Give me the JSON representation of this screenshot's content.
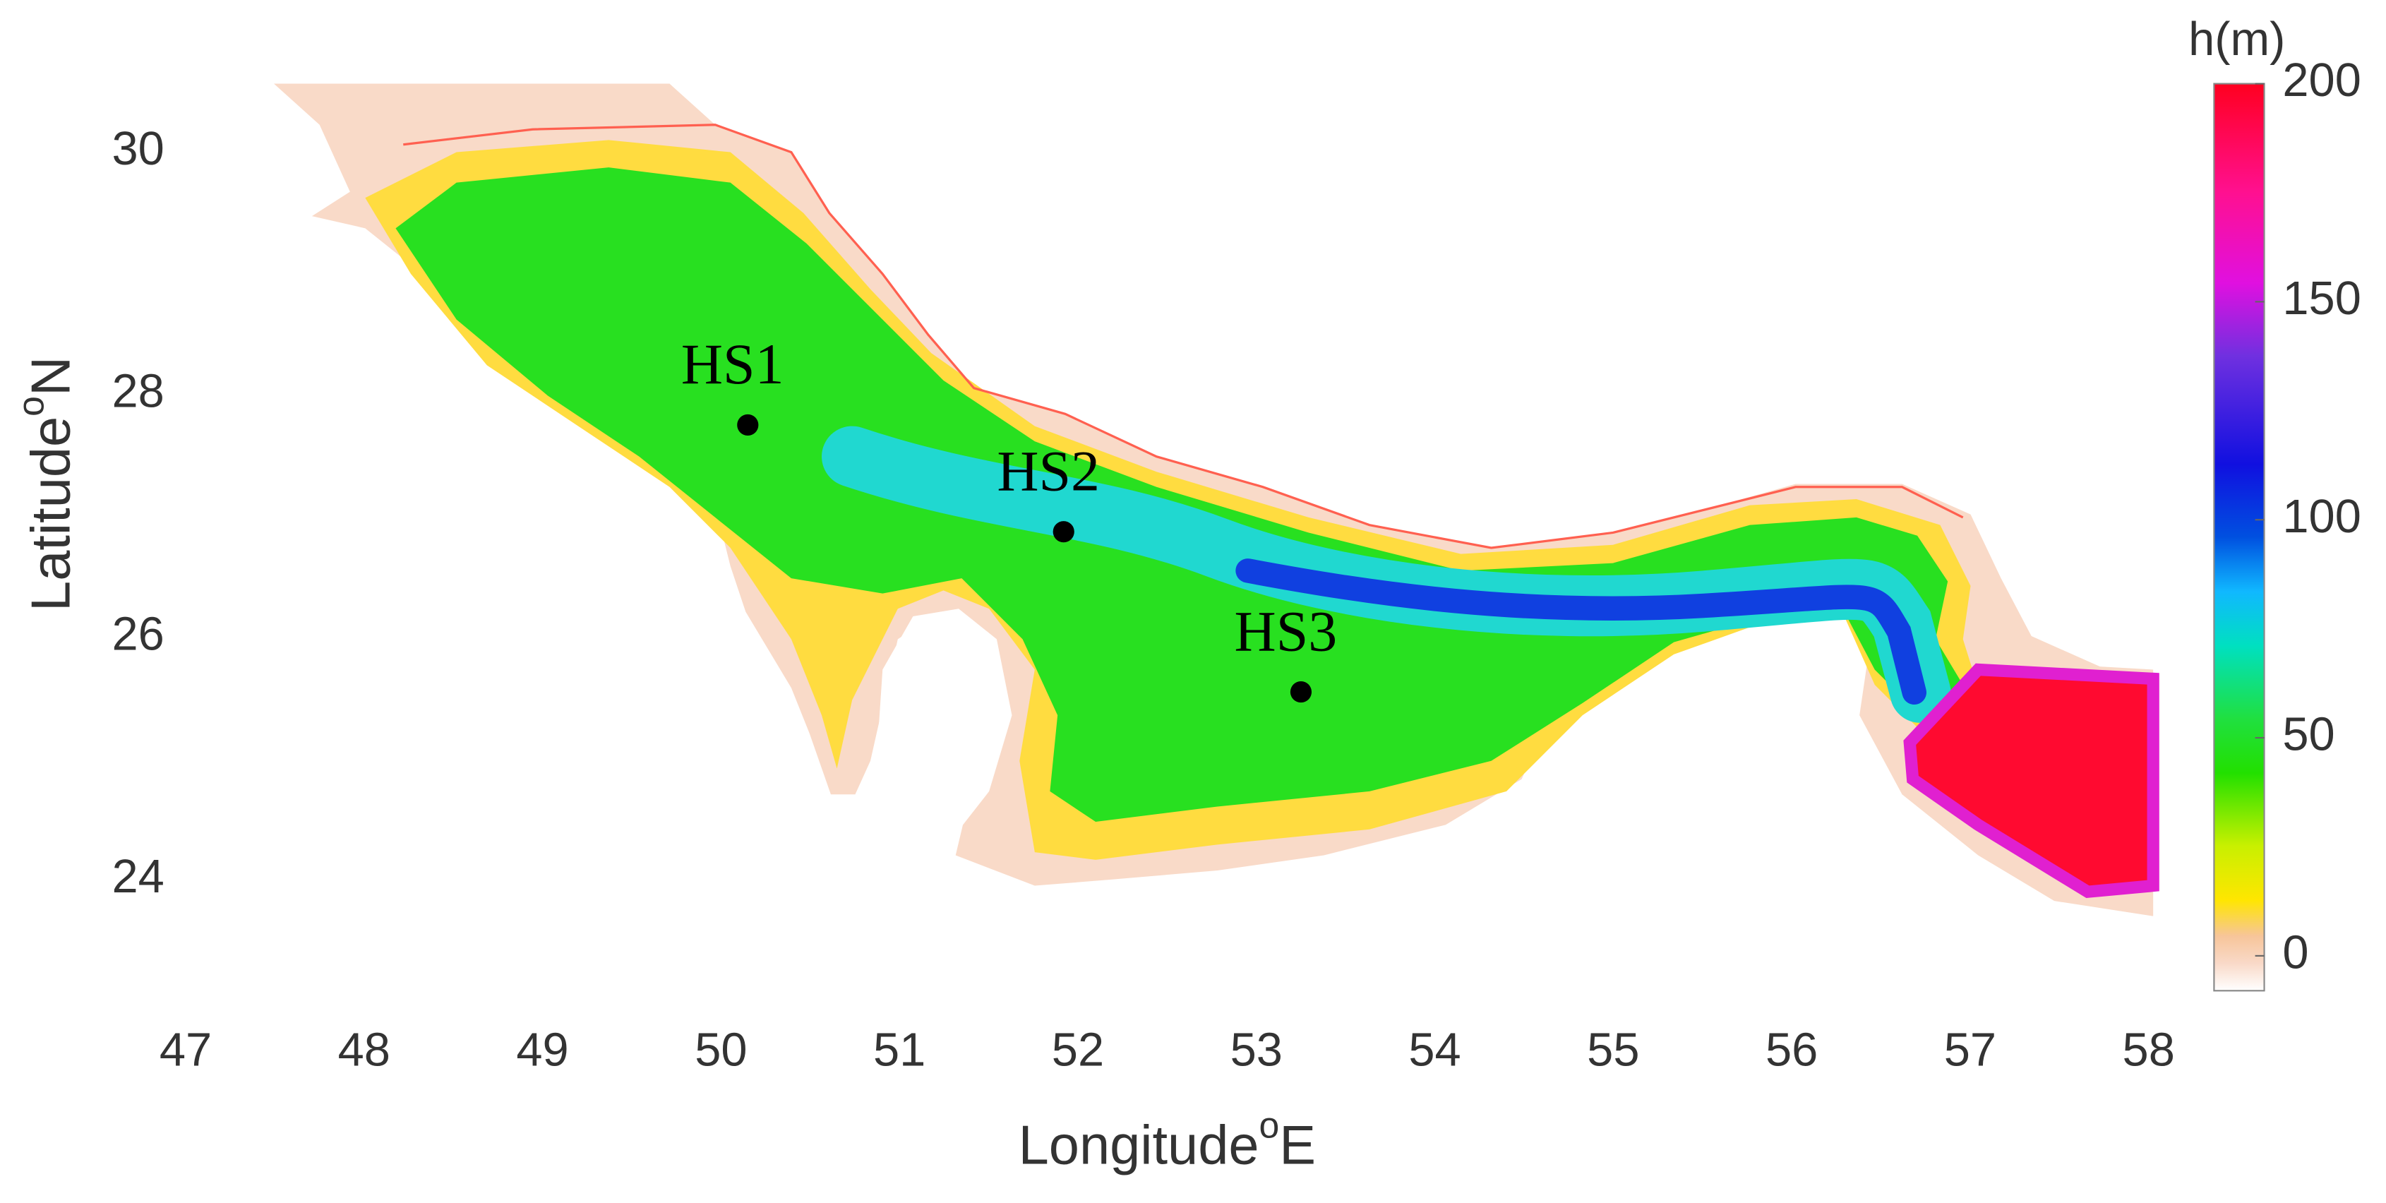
{
  "chart_data": {
    "type": "map",
    "x_label": "Longitude",
    "x_label_sup": "o",
    "x_label_unit": "E",
    "y_label": "Latitude",
    "y_label_sup": "o",
    "y_label_unit": "N",
    "xlim": [
      47,
      58
    ],
    "xticks": [
      47,
      48,
      49,
      50,
      51,
      52,
      53,
      54,
      55,
      56,
      57,
      58
    ],
    "ylim": [
      23,
      30.6
    ],
    "yticks": [
      24,
      26,
      28,
      30
    ],
    "stations": [
      {
        "name": "HS1",
        "lon": 50.15,
        "lat": 27.75
      },
      {
        "name": "HS2",
        "lon": 51.92,
        "lat": 26.87
      },
      {
        "name": "HS3",
        "lon": 53.25,
        "lat": 25.55
      }
    ],
    "station_color": "#000000",
    "colorbar": {
      "label": "h(m)",
      "lim": [
        -8,
        200
      ],
      "ticks": [
        0,
        50,
        100,
        150,
        200
      ]
    }
  }
}
